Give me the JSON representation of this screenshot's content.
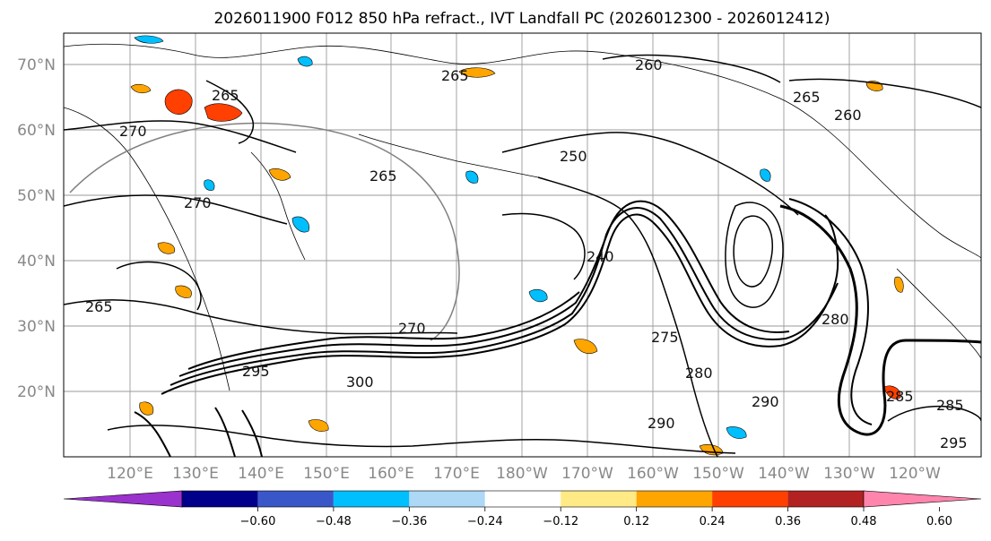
{
  "title": "2026011900 F012 850 hPa refract., IVT Landfall PC (2026012300 - 2026012412)",
  "lat_labels": [
    "70°N",
    "60°N",
    "50°N",
    "40°N",
    "30°N",
    "20°N"
  ],
  "lon_labels": [
    "120°E",
    "130°E",
    "140°E",
    "150°E",
    "160°E",
    "170°E",
    "180°W",
    "170°W",
    "160°W",
    "150°W",
    "140°W",
    "130°W",
    "120°W"
  ],
  "contour_labels": [
    "265",
    "270",
    "260",
    "265",
    "250",
    "270",
    "265",
    "265",
    "265",
    "260",
    "275",
    "280",
    "285",
    "290",
    "295",
    "300",
    "290",
    "280",
    "270",
    "285",
    "295",
    "240"
  ],
  "colorbar": {
    "colors": [
      "#9a32cd",
      "#00008b",
      "#3a57c9",
      "#00bfff",
      "#add8f6",
      "#ffffff",
      "#ffea86",
      "#ffa500",
      "#ff4000",
      "#b22222",
      "#ff85ad"
    ],
    "under_color": "#9a32cd",
    "over_color": "#ff85ad",
    "tick_labels": [
      "−0.60",
      "−0.48",
      "−0.36",
      "−0.24",
      "−0.12",
      "0.12",
      "0.24",
      "0.36",
      "0.48",
      "0.60"
    ]
  }
}
